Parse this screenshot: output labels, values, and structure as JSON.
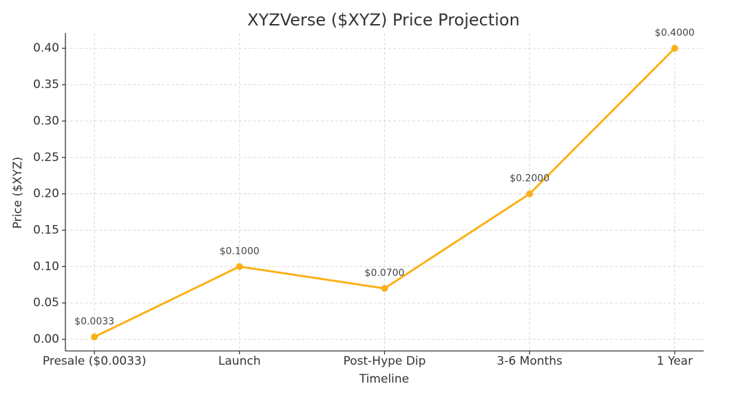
{
  "chart_data": {
    "type": "line",
    "title": "XYZVerse ($XYZ) Price Projection",
    "x_label": "Timeline",
    "y_label": "Price ($XYZ)",
    "categories": [
      "Presale ($0.0033)",
      "Launch",
      "Post-Hype Dip",
      "3-6 Months",
      "1 Year"
    ],
    "series": [
      {
        "name": "Price",
        "color": "#fbb117",
        "values": [
          0.0033,
          0.1,
          0.07,
          0.2,
          0.4
        ],
        "value_labels": [
          "$0.0033",
          "$0.1000",
          "$0.0700",
          "$0.2000",
          "$0.4000"
        ]
      }
    ],
    "ylim": [
      -0.016,
      0.421
    ],
    "yticks": [
      {
        "value": 0,
        "label": "0.00"
      },
      0.05,
      {
        "value": 0.1,
        "label": "0.10"
      },
      0.15,
      {
        "value": 0.2,
        "label": "0.20"
      },
      0.25,
      {
        "value": 0.3,
        "label": "0.30"
      },
      0.35,
      {
        "value": 0.4,
        "label": "0.40"
      }
    ],
    "grid": true
  }
}
